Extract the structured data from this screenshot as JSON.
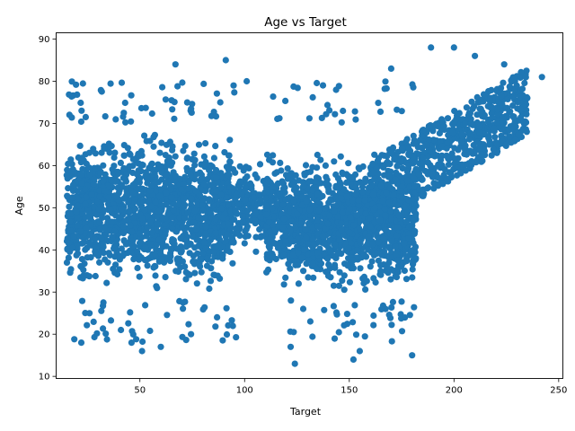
{
  "chart_data": {
    "type": "scatter",
    "title": "Age vs Target",
    "xlabel": "Target",
    "ylabel": "Age",
    "xlim": [
      10,
      252
    ],
    "ylim": [
      9.5,
      91.5
    ],
    "xticks": [
      50,
      100,
      150,
      200,
      250
    ],
    "yticks": [
      10,
      20,
      30,
      40,
      50,
      60,
      70,
      80,
      90
    ],
    "grid": false,
    "legend": "none",
    "marker_color": "#1f77b4",
    "clusters": [
      {
        "x_range": [
          15,
          95
        ],
        "y_range": [
          28,
          70
        ],
        "description": "left dense block"
      },
      {
        "x_range": [
          95,
          112
        ],
        "y_range": [
          38,
          63
        ],
        "description": "bridge"
      },
      {
        "x_range": [
          110,
          182
        ],
        "y_range": [
          28,
          65
        ],
        "description": "right dense block"
      },
      {
        "x_range": [
          160,
          235
        ],
        "y_range": [
          50,
          80
        ],
        "description": "upper-right diagonal band"
      }
    ],
    "notable_points": [
      {
        "x": 242,
        "y": 81
      },
      {
        "x": 189,
        "y": 88
      },
      {
        "x": 200,
        "y": 88
      },
      {
        "x": 91,
        "y": 85
      },
      {
        "x": 67,
        "y": 84
      },
      {
        "x": 224,
        "y": 84
      },
      {
        "x": 124,
        "y": 13
      },
      {
        "x": 152,
        "y": 14
      },
      {
        "x": 180,
        "y": 15
      },
      {
        "x": 122,
        "y": 17
      },
      {
        "x": 51,
        "y": 16
      },
      {
        "x": 60,
        "y": 17
      },
      {
        "x": 22,
        "y": 18
      },
      {
        "x": 46,
        "y": 18
      },
      {
        "x": 155,
        "y": 16
      },
      {
        "x": 235,
        "y": 76
      },
      {
        "x": 229,
        "y": 78
      },
      {
        "x": 210,
        "y": 86
      },
      {
        "x": 170,
        "y": 83
      },
      {
        "x": 101,
        "y": 80
      }
    ]
  }
}
